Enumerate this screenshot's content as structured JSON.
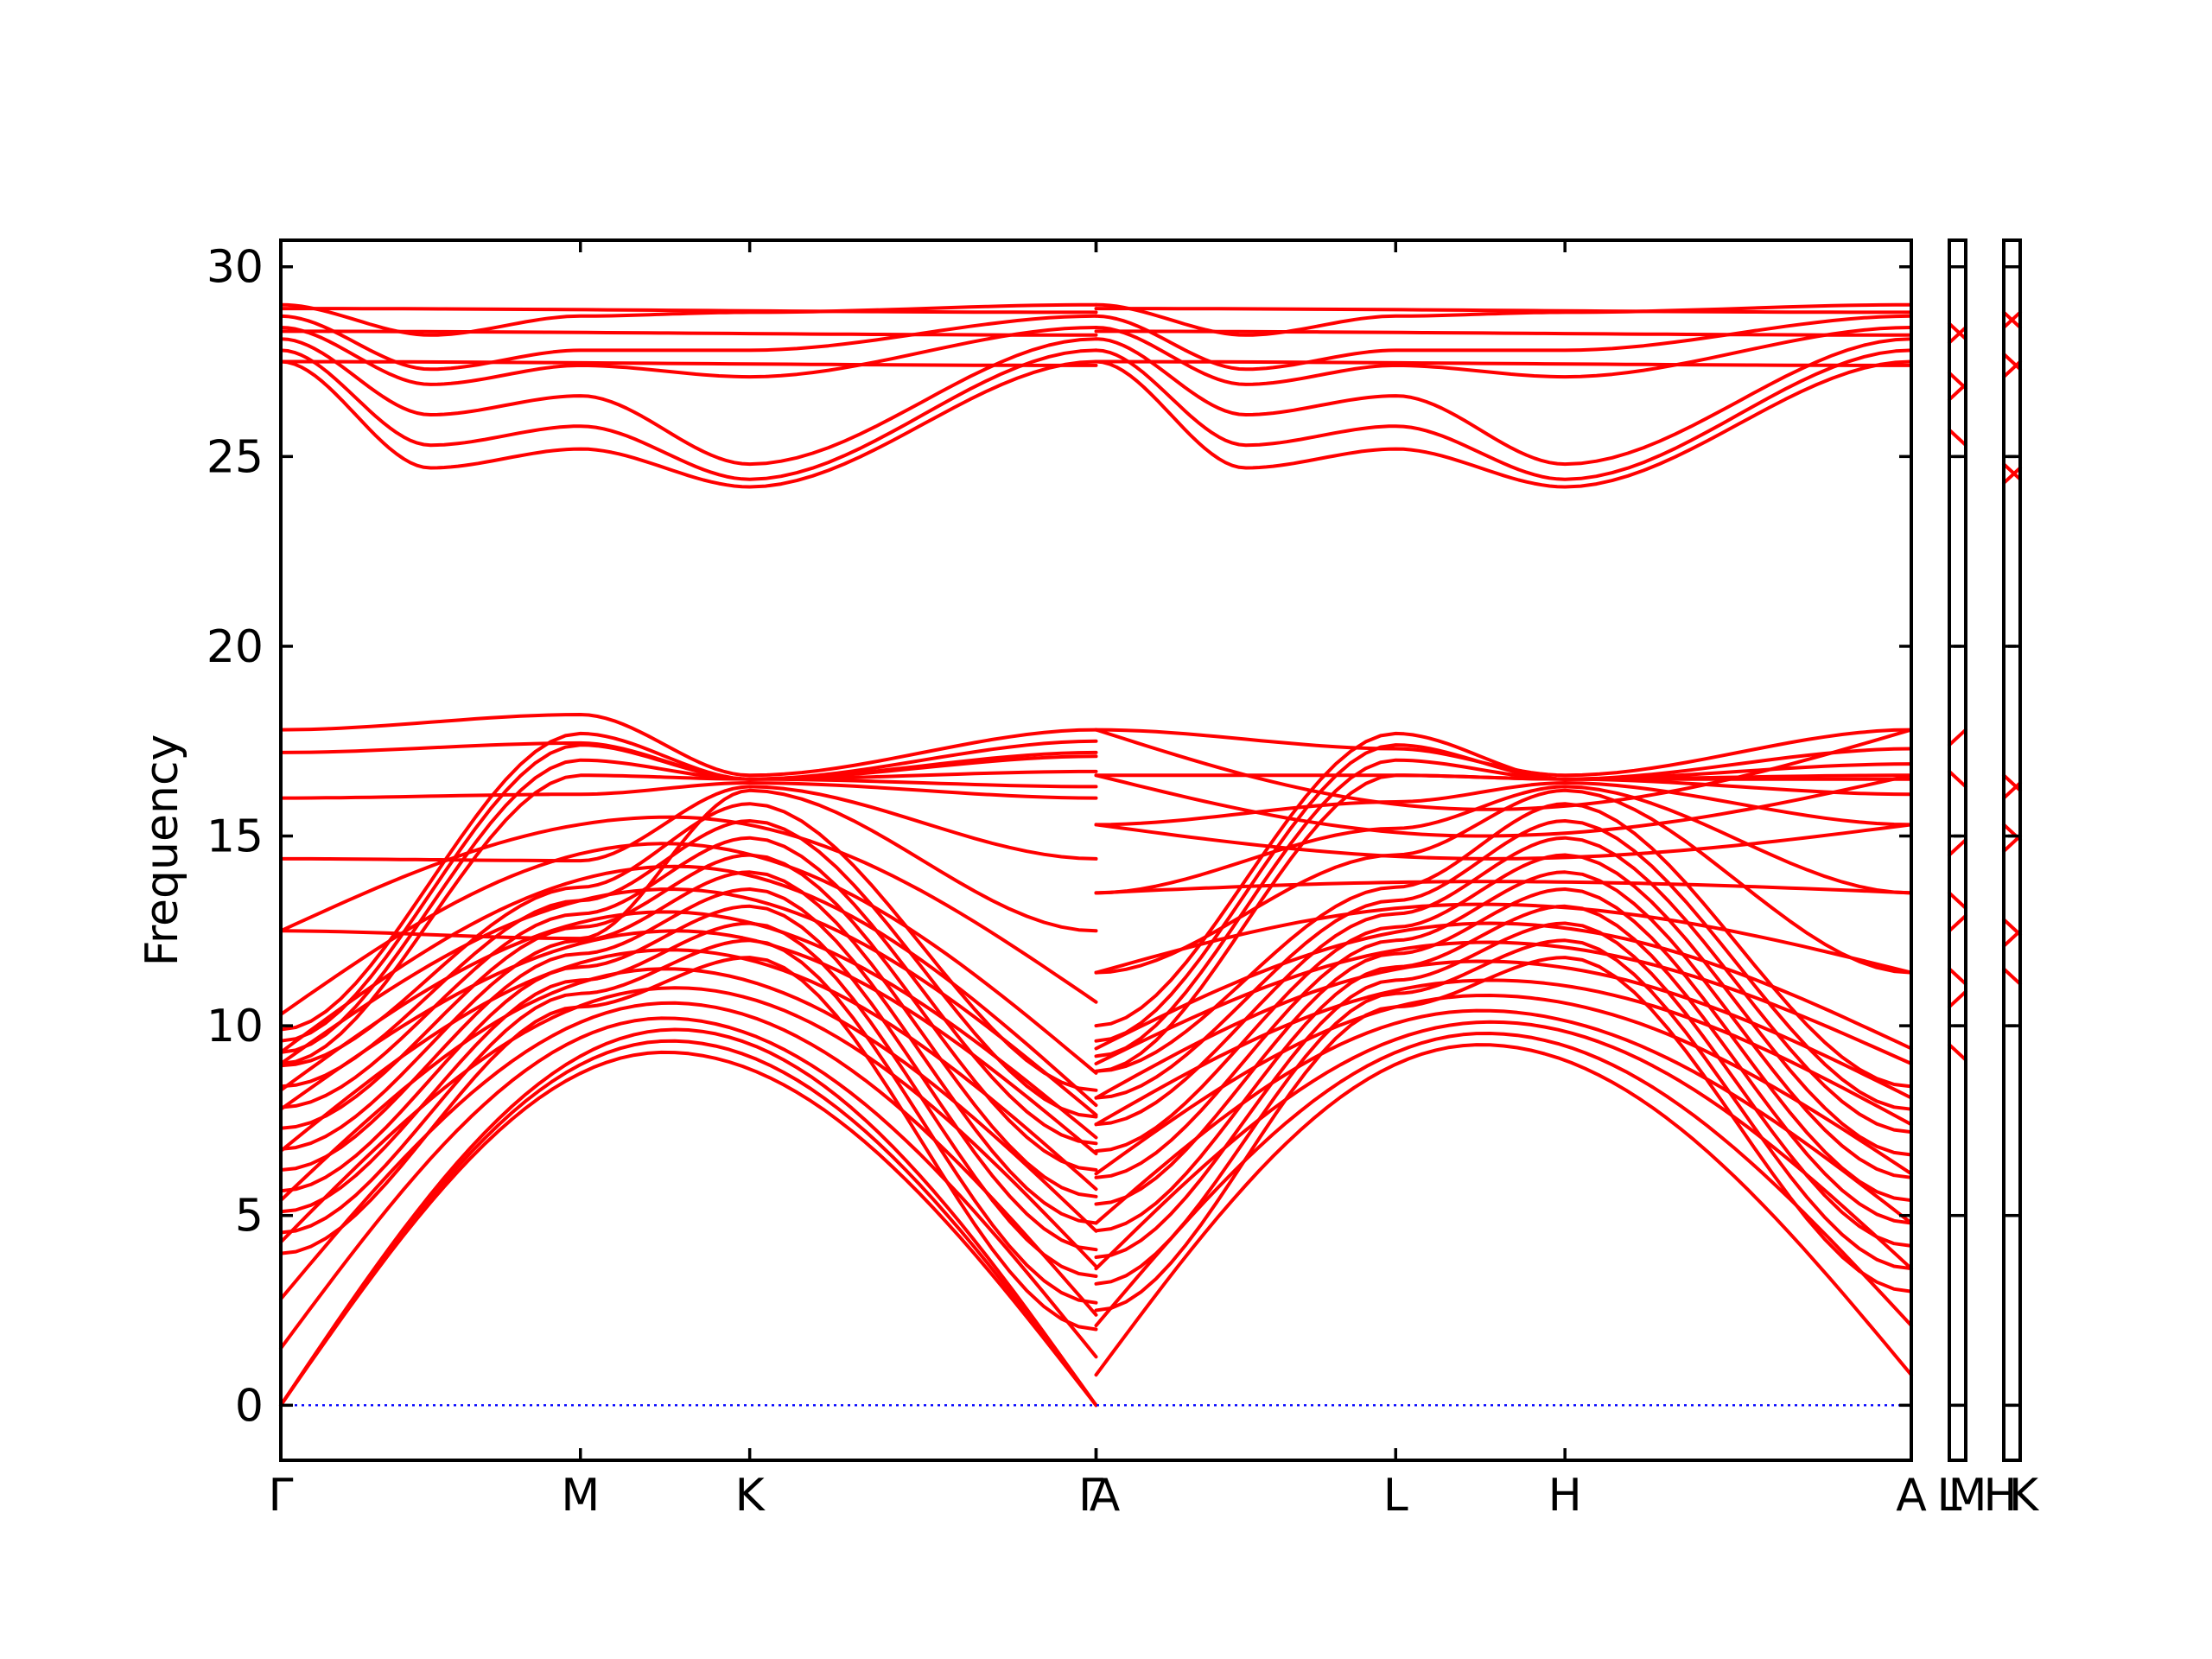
{
  "chart_data": {
    "type": "line",
    "title": "",
    "xlabel": "",
    "ylabel": "Frequency",
    "ylim": [
      -1.45,
      30.7
    ],
    "yticks": [
      0,
      5,
      10,
      15,
      20,
      25,
      30
    ],
    "grid": false,
    "legend": "none",
    "colors": {
      "bands": "#ff0000",
      "zero_line": "#0000ff",
      "frame": "#000000"
    },
    "segments": [
      {
        "path": [
          "Γ",
          "M",
          "K",
          "Γ"
        ],
        "tick_labels": [
          "Γ",
          "M",
          "K",
          "Γ"
        ],
        "length": [
          0,
          0.577,
          0.903,
          1.57
        ]
      },
      {
        "path": [
          "A",
          "L",
          "H",
          "A"
        ],
        "tick_labels": [
          "A",
          "L",
          "H",
          "A"
        ],
        "length": [
          0,
          0.577,
          0.903,
          1.57
        ]
      },
      {
        "path": [
          "L",
          "M"
        ],
        "tick_labels": [
          "L",
          "M"
        ],
        "length": [
          0,
          0.05
        ]
      },
      {
        "path": [
          "H",
          "K"
        ],
        "tick_labels": [
          "H",
          "K"
        ],
        "length": [
          0,
          0.05
        ]
      }
    ],
    "x_tick_labels": [
      "Γ",
      "M",
      "K",
      "Γ",
      "A",
      "L",
      "H",
      "A",
      "L",
      "M",
      "H",
      "K"
    ],
    "band_summary": {
      "acoustic_start": 0,
      "gamma_low_optical": [
        1.5,
        2.8,
        4.3,
        5.4,
        6.7,
        7.8,
        8.3,
        9.0,
        9.3,
        10.3,
        12.5,
        14.4,
        16.0,
        17.2,
        17.8
      ],
      "M_point": [
        9.5,
        10.2,
        11.4,
        12.6,
        13.6,
        14.5,
        16.3,
        16.9,
        17.6
      ],
      "K_point": [
        11.5,
        12.2,
        12.8,
        14.5,
        15.4,
        16.1,
        16.6
      ],
      "A_point": [
        0.8,
        2.1,
        3.6,
        4.8,
        6.1,
        7.4,
        8.1,
        9.0,
        9.4,
        11.4,
        13.5,
        15.3,
        16.6,
        17.8
      ],
      "high_group_gamma": [
        27.5,
        27.8,
        28.1,
        28.4,
        28.7,
        29.0
      ],
      "high_group_M": [
        25.7,
        26.6,
        27.2,
        27.9,
        28.5
      ],
      "high_group_K": [
        24.3,
        24.7,
        25.0,
        27.0,
        27.6,
        28.2,
        28.8
      ]
    },
    "side_panels": {
      "L_M": [
        9.5,
        10.5,
        11.5,
        12.5,
        13.5,
        14.5,
        16.7,
        17.4,
        25.7,
        26.5,
        27.2,
        28.0,
        28.5
      ],
      "H_K": [
        11.5,
        12.1,
        12.8,
        14.6,
        15.3,
        16.0,
        16.6,
        24.3,
        24.8,
        27.1,
        27.7,
        28.4,
        28.8
      ]
    }
  }
}
